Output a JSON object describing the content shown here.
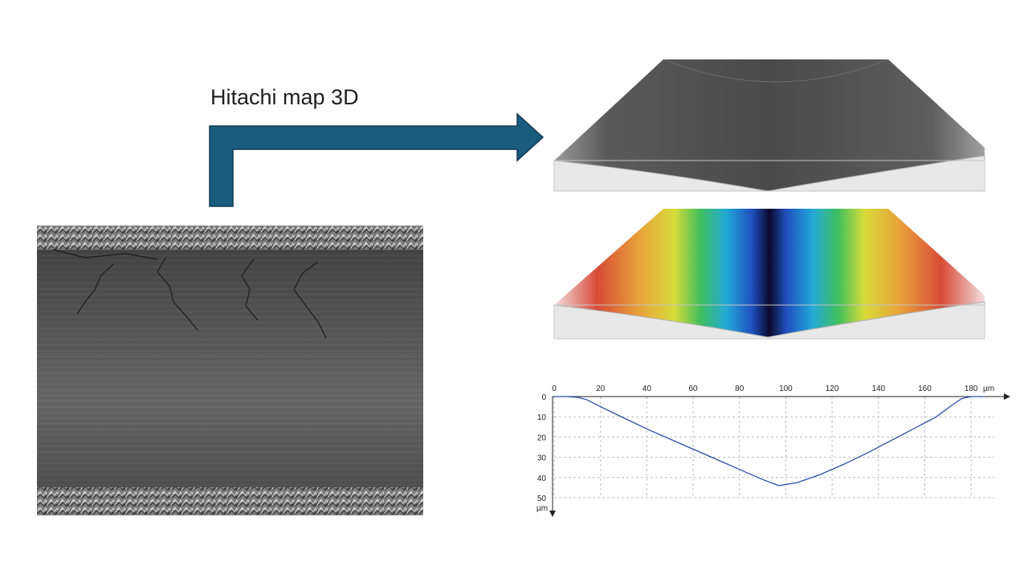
{
  "slide": {
    "title": "Hitachi map 3D",
    "arrow_color": "#1a5c7e"
  },
  "chart_data": {
    "type": "line",
    "title": "",
    "xlabel": "",
    "ylabel": "",
    "x_unit": "µm",
    "y_unit": "µm",
    "xlim": [
      0,
      190
    ],
    "ylim": [
      50,
      0
    ],
    "x_ticks": [
      "0",
      "20",
      "40",
      "60",
      "80",
      "100",
      "120",
      "140",
      "160",
      "180"
    ],
    "y_ticks": [
      "0",
      "10",
      "20",
      "30",
      "40",
      "50"
    ],
    "grid": true,
    "legend": "none",
    "series": [
      {
        "color": "#2b4fa8",
        "x": [
          0,
          5,
          10,
          14,
          20,
          30,
          40,
          50,
          60,
          70,
          80,
          90,
          97,
          105,
          115,
          125,
          135,
          145,
          155,
          165,
          172,
          176,
          180,
          186
        ],
        "y": [
          0,
          0,
          0.3,
          1.5,
          5,
          10.5,
          16,
          21,
          26,
          31,
          36,
          41,
          44,
          42.5,
          38.5,
          33.5,
          28,
          22,
          16,
          10,
          4,
          1,
          0,
          0
        ]
      }
    ]
  }
}
